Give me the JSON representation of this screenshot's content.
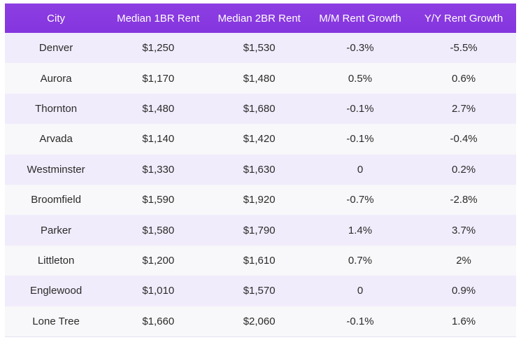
{
  "table": {
    "headers": [
      "City",
      "Median 1BR Rent",
      "Median 2BR Rent",
      "M/M Rent Growth",
      "Y/Y Rent Growth"
    ],
    "rows": [
      [
        "Denver",
        "$1,250",
        "$1,530",
        "-0.3%",
        "-5.5%"
      ],
      [
        "Aurora",
        "$1,170",
        "$1,480",
        "0.5%",
        "0.6%"
      ],
      [
        "Thornton",
        "$1,480",
        "$1,680",
        "-0.1%",
        "2.7%"
      ],
      [
        "Arvada",
        "$1,140",
        "$1,420",
        "-0.1%",
        "-0.4%"
      ],
      [
        "Westminster",
        "$1,330",
        "$1,630",
        "0",
        "0.2%"
      ],
      [
        "Broomfield",
        "$1,590",
        "$1,920",
        "-0.7%",
        "-2.8%"
      ],
      [
        "Parker",
        "$1,580",
        "$1,790",
        "1.4%",
        "3.7%"
      ],
      [
        "Littleton",
        "$1,200",
        "$1,610",
        "0.7%",
        "2%"
      ],
      [
        "Englewood",
        "$1,010",
        "$1,570",
        "0",
        "0.9%"
      ],
      [
        "Lone Tree",
        "$1,660",
        "$2,060",
        "-0.1%",
        "1.6%"
      ]
    ]
  },
  "colors": {
    "header_bg": "#8a3ae0",
    "header_text": "#ffffff",
    "row_odd": "#f1ecfb",
    "row_even": "#f8f7f9"
  }
}
